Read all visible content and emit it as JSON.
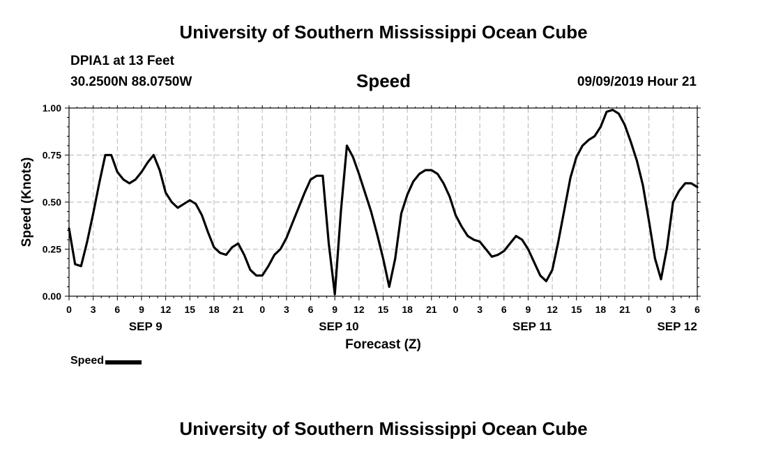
{
  "header": {
    "title": "University of Southern Mississippi Ocean Cube",
    "station": "DPIA1 at 13 Feet",
    "location": "30.2500N 88.0750W",
    "chart_title": "Speed",
    "datetime": "09/09/2019 Hour 21"
  },
  "footer": {
    "title": "University of Southern Mississippi Ocean Cube"
  },
  "legend": {
    "label": "Speed",
    "color": "#000000"
  },
  "chart_data": {
    "type": "line",
    "xlabel": "Forecast (Z)",
    "ylabel": "Speed (Knots)",
    "xlim": [
      0,
      78
    ],
    "ylim": [
      0,
      1
    ],
    "grid": true,
    "x_tick_labels": [
      "0",
      "3",
      "6",
      "9",
      "12",
      "15",
      "18",
      "21",
      "0",
      "3",
      "6",
      "9",
      "12",
      "15",
      "18",
      "21",
      "0",
      "3",
      "6",
      "9",
      "12",
      "15",
      "18",
      "21",
      "0",
      "3",
      "6"
    ],
    "y_tick_labels": [
      "0.00",
      "0.25",
      "0.50",
      "0.75",
      "1.00"
    ],
    "y_ticks": [
      0,
      0.25,
      0.5,
      0.75,
      1.0
    ],
    "date_labels": [
      {
        "label": "SEP 9",
        "x": 9.5
      },
      {
        "label": "SEP 10",
        "x": 33.5
      },
      {
        "label": "SEP 11",
        "x": 57.5
      },
      {
        "label": "SEP 12",
        "x": 75.5
      }
    ],
    "series": [
      {
        "name": "Speed",
        "color": "#000000",
        "x": [
          0,
          0.75,
          1.5,
          2.25,
          3,
          3.75,
          4.5,
          5.25,
          6,
          6.75,
          7.5,
          8.25,
          9,
          9.75,
          10.5,
          11.25,
          12,
          12.75,
          13.5,
          14.25,
          15,
          15.75,
          16.5,
          17.25,
          18,
          18.75,
          19.5,
          20.25,
          21,
          21.75,
          22.5,
          23.25,
          24,
          24.75,
          25.5,
          26.25,
          27,
          27.75,
          28.5,
          29.25,
          30,
          30.75,
          31.5,
          32.25,
          33,
          33.75,
          34.5,
          35.25,
          36,
          36.75,
          37.5,
          38.25,
          39,
          39.75,
          40.5,
          41.25,
          42,
          42.75,
          43.5,
          44.25,
          45,
          45.75,
          46.5,
          47.25,
          48,
          48.75,
          49.5,
          50.25,
          51,
          51.75,
          52.5,
          53.25,
          54,
          54.75,
          55.5,
          56.25,
          57,
          57.75,
          58.5,
          59.25,
          60,
          60.75,
          61.5,
          62.25,
          63,
          63.75,
          64.5,
          65.25,
          66,
          66.75,
          67.5,
          68.25,
          69,
          69.75,
          70.5,
          71.25,
          72,
          72.75,
          73.5,
          74.25,
          75,
          75.75,
          76.5,
          77.25,
          78
        ],
        "values": [
          0.36,
          0.17,
          0.16,
          0.29,
          0.44,
          0.6,
          0.75,
          0.75,
          0.66,
          0.62,
          0.6,
          0.62,
          0.66,
          0.71,
          0.75,
          0.67,
          0.55,
          0.5,
          0.47,
          0.49,
          0.51,
          0.49,
          0.43,
          0.34,
          0.26,
          0.23,
          0.22,
          0.26,
          0.28,
          0.22,
          0.14,
          0.11,
          0.11,
          0.16,
          0.22,
          0.25,
          0.31,
          0.39,
          0.47,
          0.55,
          0.62,
          0.64,
          0.64,
          0.28,
          0.01,
          0.45,
          0.8,
          0.74,
          0.65,
          0.55,
          0.45,
          0.33,
          0.2,
          0.05,
          0.2,
          0.44,
          0.54,
          0.61,
          0.65,
          0.67,
          0.67,
          0.65,
          0.6,
          0.53,
          0.43,
          0.37,
          0.32,
          0.3,
          0.29,
          0.25,
          0.21,
          0.22,
          0.24,
          0.28,
          0.32,
          0.3,
          0.25,
          0.18,
          0.11,
          0.08,
          0.14,
          0.29,
          0.46,
          0.63,
          0.74,
          0.8,
          0.83,
          0.85,
          0.9,
          0.98,
          0.99,
          0.97,
          0.91,
          0.82,
          0.72,
          0.59,
          0.4,
          0.2,
          0.09,
          0.26,
          0.5,
          0.56,
          0.6,
          0.6,
          0.58
        ]
      }
    ]
  }
}
